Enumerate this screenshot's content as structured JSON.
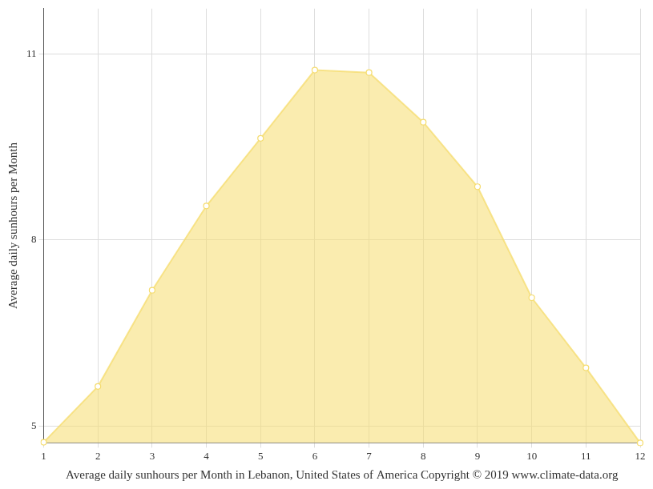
{
  "chart_data": {
    "type": "line",
    "x_label": "Average daily sunhours per Month in Lebanon, United States of America Copyright © 2019 www.climate-data.org",
    "y_label": "Average daily sunhours per Month",
    "categories": [
      "1",
      "2",
      "3",
      "4",
      "5",
      "6",
      "7",
      "8",
      "9",
      "10",
      "11",
      "12"
    ],
    "values": [
      4.74,
      5.64,
      7.19,
      8.55,
      9.64,
      10.74,
      10.7,
      9.9,
      8.86,
      7.07,
      5.94,
      4.73
    ],
    "color": "#f5dc6e",
    "ylim": [
      4.73,
      11.73
    ],
    "yticks": [
      5,
      8,
      11
    ],
    "grid": true
  }
}
